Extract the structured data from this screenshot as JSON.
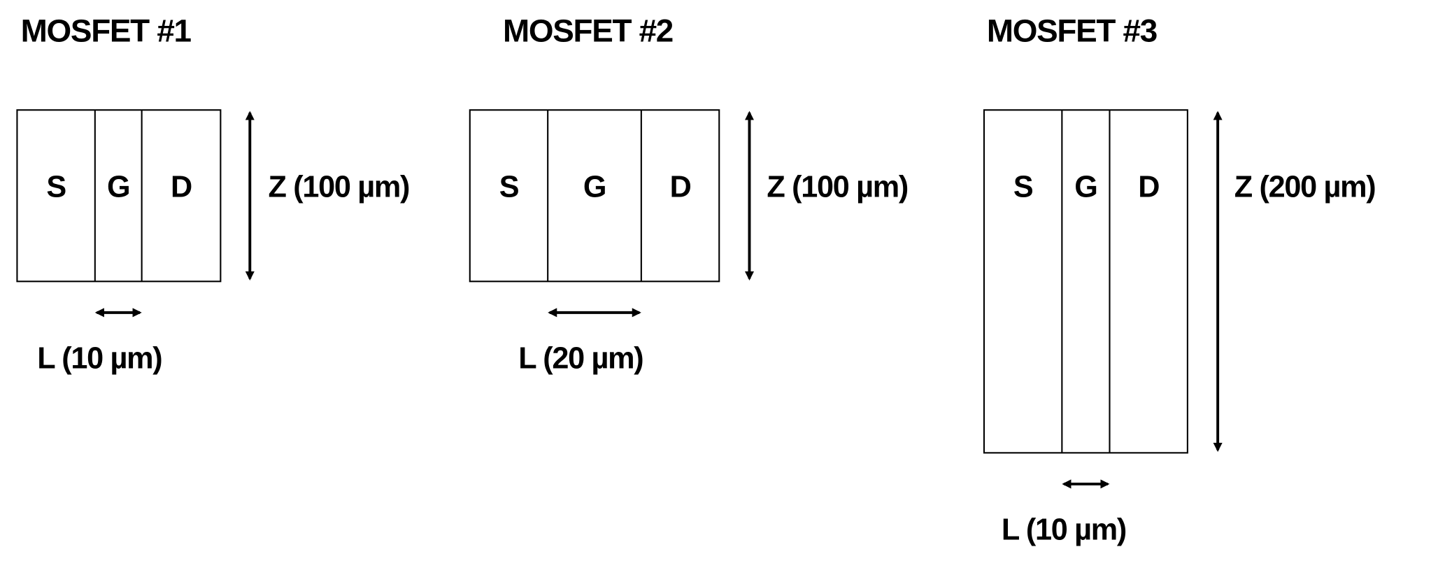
{
  "mosfets": [
    {
      "title": "MOSFET #1",
      "source": "S",
      "gate": "G",
      "drain": "D",
      "z_label": "Z (100 µm)",
      "l_label": "L (10 µm)"
    },
    {
      "title": "MOSFET #2",
      "source": "S",
      "gate": "G",
      "drain": "D",
      "z_label": "Z (100 µm)",
      "l_label": "L (20 µm)"
    },
    {
      "title": "MOSFET #3",
      "source": "S",
      "gate": "G",
      "drain": "D",
      "z_label": "Z (200 µm)",
      "l_label": "L (10 µm)"
    }
  ]
}
